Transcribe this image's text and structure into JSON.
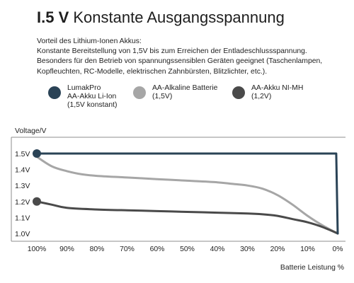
{
  "header": {
    "title_bold": "I.5 V",
    "title_rest": "Konstante Ausgangsspannung"
  },
  "description": {
    "lines": [
      "Vorteil des Lithium-Ionen Akkus:",
      "Konstante Bereitstellung von 1,5V bis zum Erreichen der Entladeschlussspannung.",
      "Besonders für den Betrieb von spannungssensiblen Geräten geeignet (Taschenlampen,",
      "Kopfleuchten, RC-Modelle, elektrischen Zahnbürsten, Blitzlichter, etc.)."
    ]
  },
  "legend": [
    {
      "lines": [
        "LumakPro",
        "AA-Akku Li-Ion",
        "(1,5V konstant)"
      ],
      "color": "#2a4356"
    },
    {
      "lines": [
        "AA-Alkaline Batterie",
        "(1,5V)"
      ],
      "color": "#a6a6a6"
    },
    {
      "lines": [
        "AA-Akku NI-MH",
        "(1,2V)"
      ],
      "color": "#4a4a4a"
    }
  ],
  "chart_data": {
    "type": "line",
    "ylabel": "Voltage/V",
    "xlabel": "Batterie Leistung %",
    "x_reversed": true,
    "xlim": [
      100,
      0
    ],
    "ylim": [
      1.0,
      1.5
    ],
    "x_ticks": [
      100,
      90,
      80,
      70,
      60,
      50,
      40,
      30,
      20,
      10,
      0
    ],
    "x_tick_labels": [
      "100%",
      "90%",
      "80%",
      "70%",
      "60%",
      "50%",
      "40%",
      "30%",
      "20%",
      "10%",
      "0%"
    ],
    "y_ticks": [
      1.0,
      1.1,
      1.2,
      1.3,
      1.4,
      1.5
    ],
    "y_tick_labels": [
      "1.0V",
      "1.1V",
      "1.2V",
      "1.3V",
      "1.4V",
      "1.5V"
    ],
    "grid": false,
    "series": [
      {
        "name": "LumakPro AA-Akku Li-Ion (1,5V konstant)",
        "color": "#2a4356",
        "x": [
          100,
          0.5,
          0
        ],
        "y": [
          1.5,
          1.5,
          1.0
        ],
        "start_marker": true
      },
      {
        "name": "AA-Alkaline Batterie (1,5V)",
        "color": "#a6a6a6",
        "x": [
          100,
          95,
          90,
          85,
          80,
          70,
          60,
          50,
          40,
          35,
          30,
          25,
          20,
          15,
          10,
          5,
          0
        ],
        "y": [
          1.48,
          1.42,
          1.39,
          1.37,
          1.36,
          1.35,
          1.34,
          1.33,
          1.32,
          1.31,
          1.3,
          1.28,
          1.24,
          1.18,
          1.11,
          1.05,
          1.0
        ],
        "start_marker": false
      },
      {
        "name": "AA-Akku NI-MH (1,2V)",
        "color": "#4a4a4a",
        "x": [
          100,
          95,
          90,
          80,
          70,
          60,
          50,
          40,
          30,
          25,
          20,
          15,
          10,
          5,
          0
        ],
        "y": [
          1.2,
          1.18,
          1.16,
          1.15,
          1.145,
          1.14,
          1.135,
          1.13,
          1.125,
          1.12,
          1.11,
          1.09,
          1.07,
          1.04,
          1.0
        ],
        "start_marker": true
      }
    ]
  }
}
